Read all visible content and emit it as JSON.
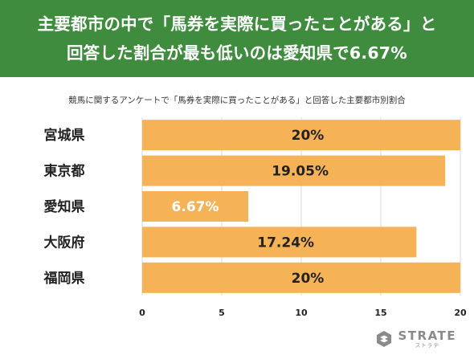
{
  "header": {
    "line1": "主要都市の中で「馬券を実際に買ったことがある」と",
    "line2": "回答した割合が最も低いのは愛知県で6.67%"
  },
  "chart_data": {
    "type": "bar",
    "orientation": "horizontal",
    "title": "競馬に関するアンケートで「馬券を実際に買ったことがある」と回答した主要都市別割合",
    "categories": [
      "宮城県",
      "東京都",
      "愛知県",
      "大阪府",
      "福岡県"
    ],
    "values": [
      20,
      19.05,
      6.67,
      17.24,
      20
    ],
    "data_labels": [
      "20%",
      "19.05%",
      "6.67%",
      "17.24%",
      "20%"
    ],
    "xlim": [
      0,
      20
    ],
    "xticks": [
      0,
      5,
      10,
      15,
      20
    ],
    "grid": true,
    "bar_color": "#f5b256",
    "label_color": "#222222",
    "label_color_light": "#ffffff"
  },
  "logo": {
    "name": "STRATE",
    "kana": "ストラテ",
    "icon": "strate-logo-icon",
    "color": "#8a8a8a"
  }
}
